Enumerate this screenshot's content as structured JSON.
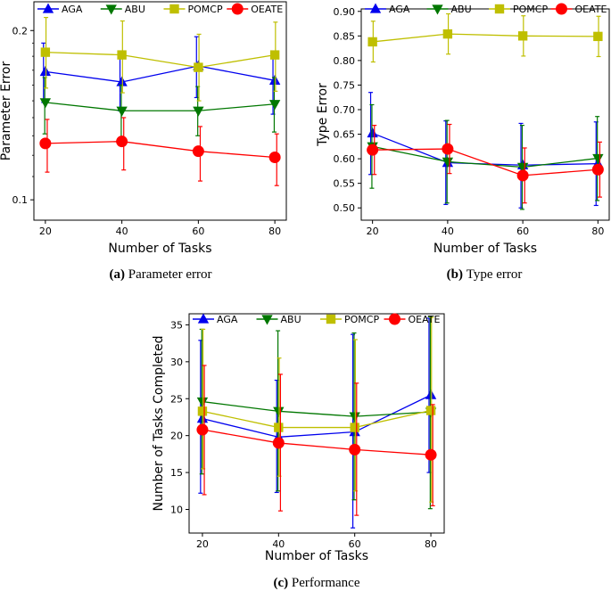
{
  "colors": {
    "AGA": "#0000ee",
    "ABU": "#007700",
    "POMCP": "#bfbf00",
    "OEATE": "#ff0000"
  },
  "chart_data": [
    {
      "id": "a",
      "type": "line",
      "xlabel": "Number of Tasks",
      "ylabel": "Parameter Error",
      "yscale": "log",
      "xlim": [
        17,
        83
      ],
      "ylim": [
        0.092,
        0.225
      ],
      "xticks": [
        20,
        40,
        60,
        80
      ],
      "yticks": [
        0.1,
        0.2
      ],
      "ytick_labels": [
        "0.1",
        "0.2"
      ],
      "caption_label": "(a)",
      "caption_text": "Parameter error",
      "legend": [
        "AGA",
        "ABU",
        "POMCP",
        "OEATE"
      ],
      "series": [
        {
          "name": "AGA",
          "marker": "triangle-up",
          "x": [
            20,
            40,
            60,
            80
          ],
          "values": [
            0.169,
            0.162,
            0.173,
            0.163
          ],
          "err_low": [
            0.149,
            0.144,
            0.152,
            0.142
          ],
          "err_high": [
            0.19,
            0.181,
            0.195,
            0.184
          ]
        },
        {
          "name": "ABU",
          "marker": "triangle-down",
          "x": [
            20,
            40,
            60,
            80
          ],
          "values": [
            0.149,
            0.144,
            0.144,
            0.148
          ],
          "err_low": [
            0.131,
            0.128,
            0.13,
            0.132
          ],
          "err_high": [
            0.165,
            0.16,
            0.159,
            0.165
          ]
        },
        {
          "name": "POMCP",
          "marker": "square",
          "x": [
            20,
            40,
            60,
            80
          ],
          "values": [
            0.183,
            0.181,
            0.172,
            0.181
          ],
          "err_low": [
            0.158,
            0.155,
            0.15,
            0.156
          ],
          "err_high": [
            0.211,
            0.208,
            0.197,
            0.207
          ]
        },
        {
          "name": "OEATE",
          "marker": "circle",
          "x": [
            20,
            40,
            60,
            80
          ],
          "values": [
            0.126,
            0.127,
            0.122,
            0.119
          ],
          "err_low": [
            0.112,
            0.113,
            0.108,
            0.106
          ],
          "err_high": [
            0.139,
            0.14,
            0.135,
            0.131
          ]
        }
      ]
    },
    {
      "id": "b",
      "type": "line",
      "xlabel": "Number of Tasks",
      "ylabel": "Type Error",
      "yscale": "linear",
      "xlim": [
        17,
        83
      ],
      "ylim": [
        0.475,
        0.905
      ],
      "xticks": [
        20,
        40,
        60,
        80
      ],
      "yticks": [
        0.5,
        0.55,
        0.6,
        0.65,
        0.7,
        0.75,
        0.8,
        0.85,
        0.9
      ],
      "ytick_labels": [
        "0.50",
        "0.55",
        "0.60",
        "0.65",
        "0.70",
        "0.75",
        "0.80",
        "0.85",
        "0.90"
      ],
      "caption_label": "(b)",
      "caption_text": "Type error",
      "legend": [
        "AGA",
        "ABU",
        "POMCP",
        "OEATE"
      ],
      "series": [
        {
          "name": "AGA",
          "marker": "triangle-up",
          "x": [
            20,
            40,
            60,
            80
          ],
          "values": [
            0.652,
            0.592,
            0.587,
            0.59
          ],
          "err_low": [
            0.568,
            0.507,
            0.5,
            0.505
          ],
          "err_high": [
            0.735,
            0.677,
            0.672,
            0.675
          ]
        },
        {
          "name": "ABU",
          "marker": "triangle-down",
          "x": [
            20,
            40,
            60,
            80
          ],
          "values": [
            0.625,
            0.594,
            0.583,
            0.601
          ],
          "err_low": [
            0.54,
            0.51,
            0.497,
            0.515
          ],
          "err_high": [
            0.71,
            0.678,
            0.668,
            0.686
          ]
        },
        {
          "name": "POMCP",
          "marker": "square",
          "x": [
            20,
            40,
            60,
            80
          ],
          "values": [
            0.838,
            0.854,
            0.85,
            0.849
          ],
          "err_low": [
            0.797,
            0.813,
            0.809,
            0.808
          ],
          "err_high": [
            0.88,
            0.895,
            0.891,
            0.89
          ]
        },
        {
          "name": "OEATE",
          "marker": "circle",
          "x": [
            20,
            40,
            60,
            80
          ],
          "values": [
            0.618,
            0.62,
            0.566,
            0.578
          ],
          "err_low": [
            0.568,
            0.57,
            0.51,
            0.522
          ],
          "err_high": [
            0.668,
            0.67,
            0.622,
            0.634
          ]
        }
      ]
    },
    {
      "id": "c",
      "type": "line",
      "xlabel": "Number of Tasks",
      "ylabel": "Number of Tasks Completed",
      "yscale": "linear",
      "xlim": [
        16.5,
        83.5
      ],
      "ylim": [
        6.8,
        36.5
      ],
      "xticks": [
        20,
        40,
        60,
        80
      ],
      "yticks": [
        10,
        15,
        20,
        25,
        30,
        35
      ],
      "ytick_labels": [
        "10",
        "15",
        "20",
        "25",
        "30",
        "35"
      ],
      "caption_label": "(c)",
      "caption_text": "Performance",
      "legend": [
        "AGA",
        "ABU",
        "POMCP",
        "OEATE"
      ],
      "series": [
        {
          "name": "AGA",
          "marker": "triangle-up",
          "x": [
            20,
            40,
            60,
            80
          ],
          "values": [
            22.3,
            19.8,
            20.5,
            25.5
          ],
          "err_low": [
            12.2,
            12.3,
            7.5,
            15.0
          ],
          "err_high": [
            32.9,
            27.5,
            33.7,
            35.9
          ]
        },
        {
          "name": "ABU",
          "marker": "triangle-down",
          "x": [
            20,
            40,
            60,
            80
          ],
          "values": [
            24.6,
            23.3,
            22.6,
            23.2
          ],
          "err_low": [
            14.8,
            12.5,
            11.3,
            10.1
          ],
          "err_high": [
            34.4,
            34.2,
            33.9,
            36.1
          ]
        },
        {
          "name": "POMCP",
          "marker": "square",
          "x": [
            20,
            40,
            60,
            80
          ],
          "values": [
            23.3,
            21.1,
            21.1,
            23.4
          ],
          "err_low": [
            15.5,
            14.5,
            12.5,
            11.0
          ],
          "err_high": [
            34.4,
            30.5,
            33.0,
            36.0
          ]
        },
        {
          "name": "OEATE",
          "marker": "circle",
          "x": [
            20,
            40,
            60,
            80
          ],
          "values": [
            20.8,
            19.0,
            18.1,
            17.4
          ],
          "err_low": [
            12.0,
            9.8,
            9.2,
            10.5
          ],
          "err_high": [
            29.5,
            28.3,
            27.1,
            24.2
          ]
        }
      ]
    }
  ]
}
